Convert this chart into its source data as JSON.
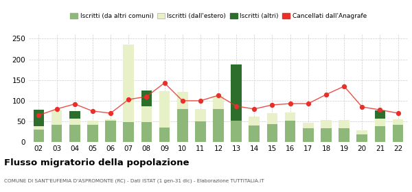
{
  "years": [
    "02",
    "03",
    "04",
    "05",
    "06",
    "07",
    "08",
    "09",
    "10",
    "11",
    "12",
    "13",
    "14",
    "15",
    "16",
    "17",
    "18",
    "19",
    "20",
    "21",
    "22"
  ],
  "iscritti_altri_comuni": [
    30,
    42,
    42,
    42,
    52,
    48,
    48,
    35,
    80,
    50,
    80,
    52,
    40,
    43,
    52,
    33,
    33,
    33,
    19,
    38,
    42
  ],
  "iscritti_estero": [
    8,
    35,
    15,
    10,
    3,
    188,
    38,
    88,
    42,
    30,
    32,
    0,
    22,
    27,
    20,
    13,
    20,
    20,
    10,
    18,
    13
  ],
  "iscritti_altri": [
    40,
    0,
    18,
    0,
    0,
    0,
    38,
    0,
    0,
    0,
    0,
    135,
    0,
    0,
    0,
    0,
    0,
    0,
    0,
    20,
    0
  ],
  "cancellati": [
    65,
    80,
    92,
    75,
    70,
    103,
    110,
    143,
    100,
    100,
    113,
    87,
    80,
    90,
    93,
    93,
    115,
    135,
    85,
    78,
    70
  ],
  "color_altri_comuni": "#8db87a",
  "color_estero": "#e8f0c8",
  "color_altri": "#2d6e2d",
  "color_cancellati": "#e8302a",
  "title": "Flusso migratorio della popolazione",
  "subtitle": "COMUNE DI SANT'EUFEMIA D'ASPROMONTE (RC) - Dati ISTAT (1 gen-31 dic) - Elaborazione TUTTITALIA.IT",
  "legend_labels": [
    "Iscritti (da altri comuni)",
    "Iscritti (dall'estero)",
    "Iscritti (altri)",
    "Cancellati dall'Anagrafe"
  ],
  "ylim": [
    0,
    260
  ],
  "yticks": [
    0,
    50,
    100,
    150,
    200,
    250
  ],
  "background_color": "#ffffff"
}
